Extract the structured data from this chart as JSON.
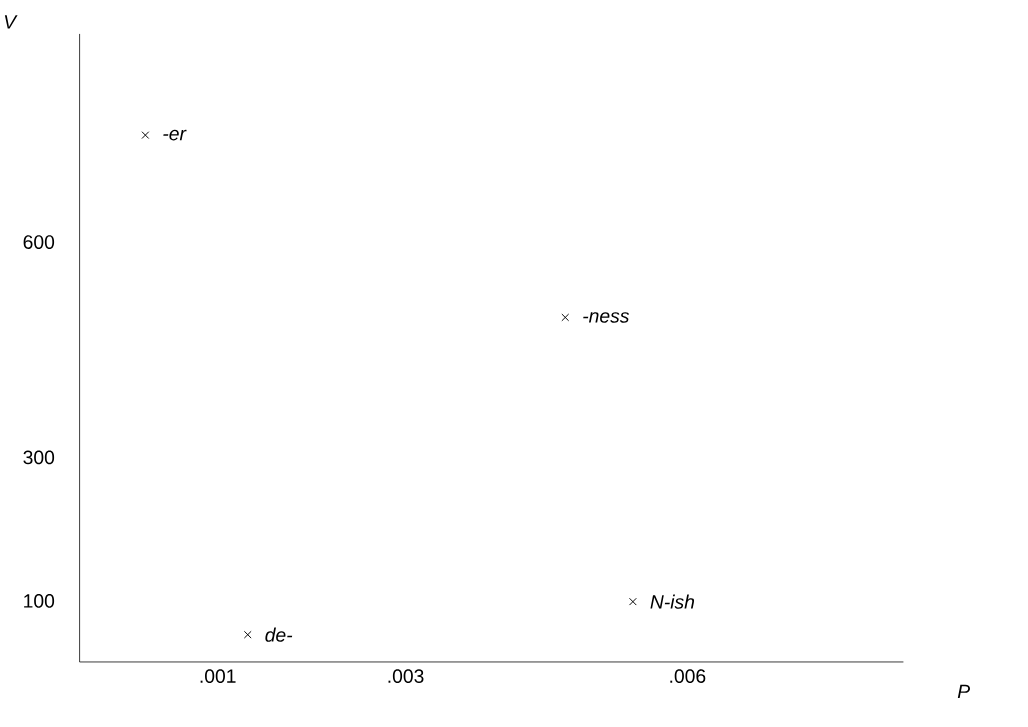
{
  "chart_data": {
    "type": "scatter",
    "xlabel": "P",
    "ylabel": "V",
    "marker": "cross",
    "color": "#000000",
    "x": [
      0.00023,
      0.00132,
      0.0047,
      0.00542
    ],
    "values": [
      749,
      53,
      495,
      99
    ],
    "xlim": [
      -0.00047,
      0.0083
    ],
    "ylim": [
      15,
      890
    ],
    "xticks": [
      {
        "value": 0.001,
        "label": ".001"
      },
      {
        "value": 0.003,
        "label": ".003"
      },
      {
        "value": 0.006,
        "label": ".006"
      }
    ],
    "yticks": [
      100,
      300,
      600
    ],
    "annotations": [
      {
        "text": "-er",
        "x": 0.00023,
        "y": 749
      },
      {
        "text": "de-",
        "x": 0.00132,
        "y": 53
      },
      {
        "text": "-ness",
        "x": 0.0047,
        "y": 495
      },
      {
        "text": "N-ish",
        "x": 0.00542,
        "y": 99
      }
    ]
  }
}
